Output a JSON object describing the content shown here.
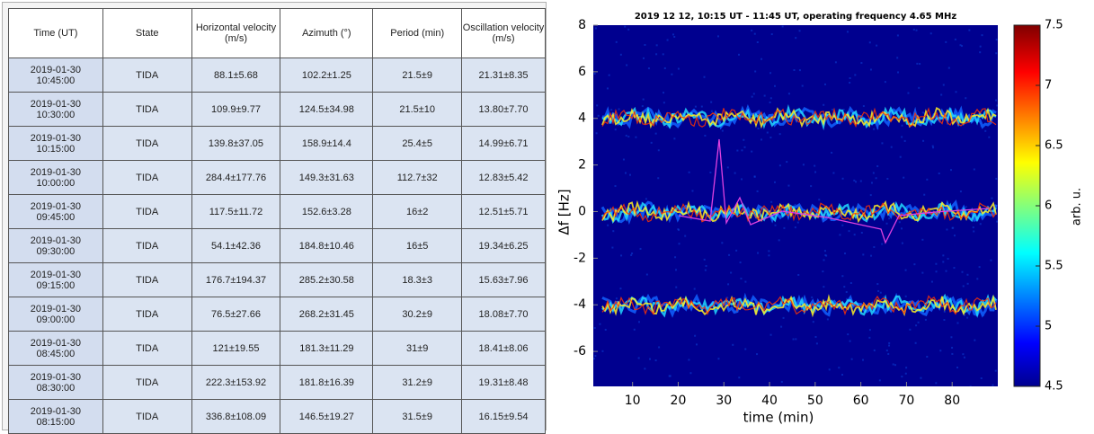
{
  "table": {
    "columns": [
      "Time (UT)",
      "State",
      "Horizontal velocity (m/s)",
      "Azimuth (°)",
      "Period (min)",
      "Oscillation velocity (m/s)"
    ],
    "rows": [
      [
        "2019-01-30\n10:45:00",
        "TIDA",
        "88.1±5.68",
        "102.2±1.25",
        "21.5±9",
        "21.31±8.35"
      ],
      [
        "2019-01-30\n10:30:00",
        "TIDA",
        "109.9±9.77",
        "124.5±34.98",
        "21.5±10",
        "13.80±7.70"
      ],
      [
        "2019-01-30\n10:15:00",
        "TIDA",
        "139.8±37.05",
        "158.9±14.4",
        "25.4±5",
        "14.99±6.71"
      ],
      [
        "2019-01-30\n10:00:00",
        "TIDA",
        "284.4±177.76",
        "149.3±31.63",
        "112.7±32",
        "12.83±5.42"
      ],
      [
        "2019-01-30\n09:45:00",
        "TIDA",
        "117.5±11.72",
        "152.6±3.28",
        "16±2",
        "12.51±5.71"
      ],
      [
        "2019-01-30\n09:30:00",
        "TIDA",
        "54.1±42.36",
        "184.8±10.46",
        "16±5",
        "19.34±6.25"
      ],
      [
        "2019-01-30\n09:15:00",
        "TIDA",
        "176.7±194.37",
        "285.2±30.58",
        "18.3±3",
        "15.63±7.96"
      ],
      [
        "2019-01-30\n09:00:00",
        "TIDA",
        "76.5±27.66",
        "268.2±31.45",
        "30.2±9",
        "18.08±7.70"
      ],
      [
        "2019-01-30\n08:45:00",
        "TIDA",
        "121±19.55",
        "181.3±11.29",
        "31±9",
        "18.41±8.06"
      ],
      [
        "2019-01-30\n08:30:00",
        "TIDA",
        "222.3±153.92",
        "181.8±16.39",
        "31.2±9",
        "19.31±8.48"
      ],
      [
        "2019-01-30\n08:15:00",
        "TIDA",
        "336.8±108.09",
        "146.5±19.27",
        "31.5±9",
        "16.15±9.54"
      ]
    ]
  },
  "chart_data": {
    "type": "heatmap",
    "title": "2019 12 12, 10:15 UT - 11:45 UT, operating frequency 4.65 MHz",
    "x_label": "time (min)",
    "y_label": "Δf [Hz]",
    "xlim": [
      1.4,
      90
    ],
    "xticks": [
      10,
      20,
      30,
      40,
      50,
      60,
      70,
      80
    ],
    "ylim": [
      -7.5,
      8
    ],
    "yticks": [
      -6,
      -4,
      -2,
      0,
      2,
      4,
      6,
      8
    ],
    "colorbar_label": "arb. u.",
    "clim": [
      4.5,
      7.5
    ],
    "cticks": [
      4.5,
      5,
      5.5,
      6,
      6.5,
      7,
      7.5
    ]
  }
}
